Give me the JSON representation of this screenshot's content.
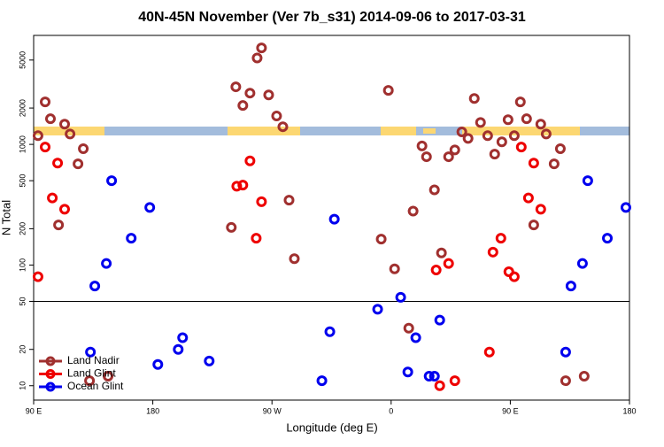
{
  "chart_data": {
    "type": "scatter",
    "title": "40N-45N November (Ver 7b_s31)   2014-09-06 to 2017-03-31",
    "x_label": "Longitude (deg E)",
    "y_label": "N Total",
    "xlim": [
      90,
      540
    ],
    "xticks": [
      {
        "value": 90,
        "label": "90 E"
      },
      {
        "value": 180,
        "label": "180"
      },
      {
        "value": 270,
        "label": "90 W"
      },
      {
        "value": 360,
        "label": "0"
      },
      {
        "value": 450,
        "label": "90 E"
      },
      {
        "value": 540,
        "label": "180"
      }
    ],
    "ylim": [
      7.6,
      8000
    ],
    "log_y": true,
    "yticks": [
      10,
      20,
      50,
      100,
      200,
      500,
      1000,
      2000,
      5000
    ],
    "hline": 50,
    "legend": "lower left",
    "series": [
      {
        "name": "Land Nadir",
        "color": "#a0302f",
        "x": [
          93.3,
          98.7,
          102.7,
          108.8,
          113.4,
          117.5,
          123.5,
          127.5,
          239.3,
          242.7,
          248.0,
          253.4,
          258.8,
          262.1,
          267.5,
          273.5,
          278.2,
          282.9,
          286.9,
          352.5,
          357.9,
          362.6,
          373.3,
          376.6,
          383.3,
          386.7,
          392.7,
          398.0,
          403.4,
          408.1,
          413.4,
          418.1,
          422.8,
          427.5,
          432.9,
          438.2,
          443.6,
          448.3,
          453.0,
          457.6,
          462.3,
          467.7,
          473.0,
          477.1,
          483.1,
          487.8,
          491.8,
          505.8,
          132.2,
          146.2
        ],
        "values": [
          1180,
          2250,
          1630,
          215,
          1470,
          1220,
          690,
          920,
          205,
          3000,
          2100,
          2660,
          5200,
          6300,
          2570,
          1720,
          1400,
          345,
          113,
          164,
          2800,
          93,
          30,
          280,
          970,
          790,
          420,
          126,
          790,
          900,
          1270,
          1120,
          2400,
          1520,
          1180,
          830,
          1050,
          1600,
          1180,
          2250,
          1630,
          215,
          1470,
          1220,
          690,
          920,
          11,
          12,
          11,
          12
        ]
      },
      {
        "name": "Land Glint",
        "color": "#ee0000",
        "x": [
          93.3,
          98.7,
          104.1,
          108.1,
          113.4,
          243.4,
          248.0,
          253.4,
          258.1,
          262.1,
          394.0,
          403.4,
          396.7,
          408.1,
          434.2,
          436.9,
          442.9,
          448.9,
          453.0,
          458.3,
          463.7,
          467.7,
          473.0
        ],
        "values": [
          80,
          950,
          360,
          700,
          290,
          450,
          460,
          730,
          167,
          335,
          91,
          103,
          10,
          11,
          19,
          128,
          167,
          88,
          80,
          950,
          360,
          700,
          290
        ]
      },
      {
        "name": "Ocean Glint",
        "color": "#0000ee",
        "x": [
          136.2,
          144.9,
          148.9,
          163.7,
          177.7,
          183.8,
          199.2,
          202.5,
          222.6,
          307.7,
          313.7,
          317.1,
          349.8,
          367.2,
          372.6,
          378.6,
          388.7,
          392.7,
          396.7,
          491.8,
          495.8,
          504.5,
          508.5,
          523.3,
          537.3,
          132.9
        ],
        "values": [
          67,
          103,
          500,
          167,
          300,
          15,
          20,
          25,
          16,
          11,
          28,
          240,
          43,
          54,
          13,
          25,
          12,
          12,
          35,
          19,
          67,
          103,
          500,
          167,
          300,
          19
        ]
      }
    ]
  }
}
